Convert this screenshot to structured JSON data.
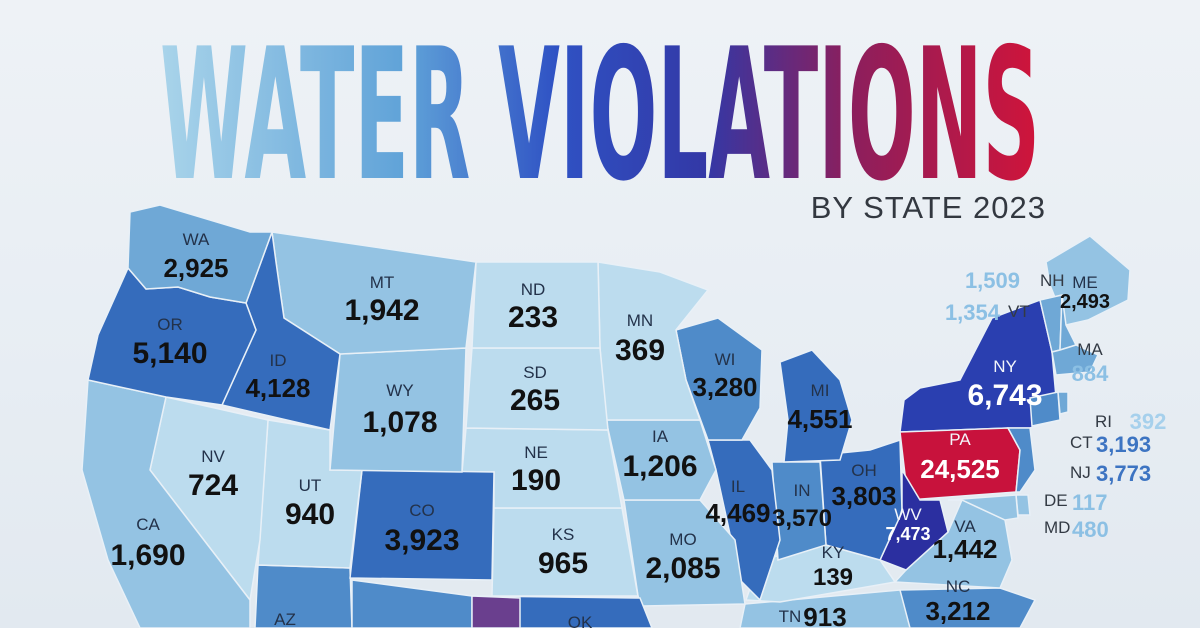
{
  "title": "WATER VIOLATIONS",
  "subtitle": "BY STATE 2023",
  "colors": {
    "very_light": "#bcdcee",
    "light": "#94c3e3",
    "mid": "#6fa8d6",
    "midstrong": "#4f8bc9",
    "strong": "#356cbc",
    "dark": "#2a3fb0",
    "extreme_wv": "#2b2fa0",
    "extreme_pa": "#c8123c",
    "ok_purple": "#6a3f8e"
  },
  "states": [
    {
      "abbr": "WA",
      "value": "2,925"
    },
    {
      "abbr": "OR",
      "value": "5,140"
    },
    {
      "abbr": "CA",
      "value": "1,690"
    },
    {
      "abbr": "NV",
      "value": "724"
    },
    {
      "abbr": "ID",
      "value": "4,128"
    },
    {
      "abbr": "MT",
      "value": "1,942"
    },
    {
      "abbr": "WY",
      "value": "1,078"
    },
    {
      "abbr": "UT",
      "value": "940"
    },
    {
      "abbr": "CO",
      "value": "3,923"
    },
    {
      "abbr": "AZ",
      "value": ""
    },
    {
      "abbr": "ND",
      "value": "233"
    },
    {
      "abbr": "SD",
      "value": "265"
    },
    {
      "abbr": "NE",
      "value": "190"
    },
    {
      "abbr": "KS",
      "value": "965"
    },
    {
      "abbr": "OK",
      "value": ""
    },
    {
      "abbr": "MN",
      "value": "369"
    },
    {
      "abbr": "IA",
      "value": "1,206"
    },
    {
      "abbr": "MO",
      "value": "2,085"
    },
    {
      "abbr": "WI",
      "value": "3,280"
    },
    {
      "abbr": "IL",
      "value": "4,469"
    },
    {
      "abbr": "MI",
      "value": "4,551"
    },
    {
      "abbr": "IN",
      "value": "3,570"
    },
    {
      "abbr": "OH",
      "value": "3,803"
    },
    {
      "abbr": "KY",
      "value": "139"
    },
    {
      "abbr": "TN",
      "value": "913"
    },
    {
      "abbr": "WV",
      "value": "7,473"
    },
    {
      "abbr": "VA",
      "value": "1,442"
    },
    {
      "abbr": "NC",
      "value": "3,212"
    },
    {
      "abbr": "PA",
      "value": "24,525"
    },
    {
      "abbr": "NY",
      "value": "6,743"
    },
    {
      "abbr": "ME",
      "value": "2,493"
    }
  ],
  "callouts": [
    {
      "abbr": "NH",
      "value": "1,509"
    },
    {
      "abbr": "VT",
      "value": "1,354"
    },
    {
      "abbr": "MA",
      "value": "884"
    },
    {
      "abbr": "RI",
      "value": "392"
    },
    {
      "abbr": "CT",
      "value": "3,193"
    },
    {
      "abbr": "NJ",
      "value": "3,773"
    },
    {
      "abbr": "DE",
      "value": "117"
    },
    {
      "abbr": "MD",
      "value": "480"
    }
  ]
}
